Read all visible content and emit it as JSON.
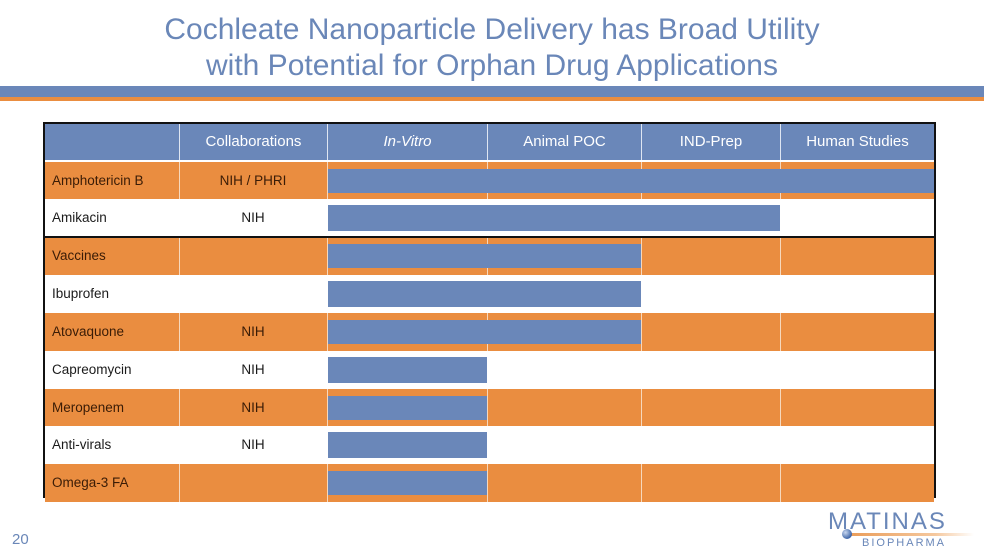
{
  "title": {
    "line1": "Cochleate Nanoparticle Delivery has Broad Utility",
    "line2": "with Potential for Orphan Drug Applications"
  },
  "colors": {
    "accent_blue": "#6a87b9",
    "accent_orange": "#ea8d40"
  },
  "table": {
    "headers": [
      "",
      "Collaborations",
      "In-Vitro",
      "Animal POC",
      "IND-Prep",
      "Human Studies"
    ],
    "stages": [
      "In-Vitro",
      "Animal POC",
      "IND-Prep",
      "Human Studies"
    ],
    "rows": [
      {
        "name": "Amphotericin B",
        "collab": "NIH / PHRI",
        "progress_stages": 4
      },
      {
        "name": "Amikacin",
        "collab": "NIH",
        "progress_stages": 3
      },
      {
        "name": "Vaccines",
        "collab": "",
        "progress_stages": 2
      },
      {
        "name": "Ibuprofen",
        "collab": "",
        "progress_stages": 2
      },
      {
        "name": "Atovaquone",
        "collab": "NIH",
        "progress_stages": 2
      },
      {
        "name": "Capreomycin",
        "collab": "NIH",
        "progress_stages": 1
      },
      {
        "name": "Meropenem",
        "collab": "NIH",
        "progress_stages": 1
      },
      {
        "name": "Anti-virals",
        "collab": "NIH",
        "progress_stages": 1
      },
      {
        "name": "Omega-3 FA",
        "collab": "",
        "progress_stages": 1
      }
    ]
  },
  "footer": {
    "page_number": "20",
    "logo_main": "MATINAS",
    "logo_sub": "BIOPHARMA"
  }
}
